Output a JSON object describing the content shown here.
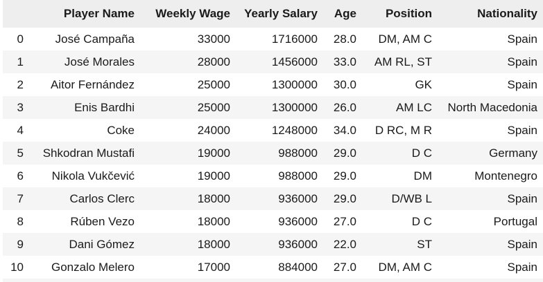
{
  "table": {
    "columns": [
      "",
      "Player Name",
      "Weekly Wage",
      "Yearly Salary",
      "Age",
      "Position",
      "Nationality"
    ],
    "rows": [
      {
        "index": "0",
        "player_name": "José Campaña",
        "weekly_wage": "33000",
        "yearly_salary": "1716000",
        "age": "28.0",
        "position": "DM, AM C",
        "nationality": "Spain"
      },
      {
        "index": "1",
        "player_name": "José Morales",
        "weekly_wage": "28000",
        "yearly_salary": "1456000",
        "age": "33.0",
        "position": "AM RL, ST",
        "nationality": "Spain"
      },
      {
        "index": "2",
        "player_name": "Aitor Fernández",
        "weekly_wage": "25000",
        "yearly_salary": "1300000",
        "age": "30.0",
        "position": "GK",
        "nationality": "Spain"
      },
      {
        "index": "3",
        "player_name": "Enis Bardhi",
        "weekly_wage": "25000",
        "yearly_salary": "1300000",
        "age": "26.0",
        "position": "AM LC",
        "nationality": "North Macedonia"
      },
      {
        "index": "4",
        "player_name": "Coke",
        "weekly_wage": "24000",
        "yearly_salary": "1248000",
        "age": "34.0",
        "position": "D RC, M R",
        "nationality": "Spain"
      },
      {
        "index": "5",
        "player_name": "Shkodran Mustafi",
        "weekly_wage": "19000",
        "yearly_salary": "988000",
        "age": "29.0",
        "position": "D C",
        "nationality": "Germany"
      },
      {
        "index": "6",
        "player_name": "Nikola Vukčević",
        "weekly_wage": "19000",
        "yearly_salary": "988000",
        "age": "29.0",
        "position": "DM",
        "nationality": "Montenegro"
      },
      {
        "index": "7",
        "player_name": "Carlos Clerc",
        "weekly_wage": "18000",
        "yearly_salary": "936000",
        "age": "29.0",
        "position": "D/WB L",
        "nationality": "Spain"
      },
      {
        "index": "8",
        "player_name": "Rúben Vezo",
        "weekly_wage": "18000",
        "yearly_salary": "936000",
        "age": "27.0",
        "position": "D C",
        "nationality": "Portugal"
      },
      {
        "index": "9",
        "player_name": "Dani Gómez",
        "weekly_wage": "18000",
        "yearly_salary": "936000",
        "age": "22.0",
        "position": "ST",
        "nationality": "Spain"
      },
      {
        "index": "10",
        "player_name": "Gonzalo Melero",
        "weekly_wage": "17000",
        "yearly_salary": "884000",
        "age": "27.0",
        "position": "DM, AM C",
        "nationality": "Spain"
      }
    ]
  }
}
